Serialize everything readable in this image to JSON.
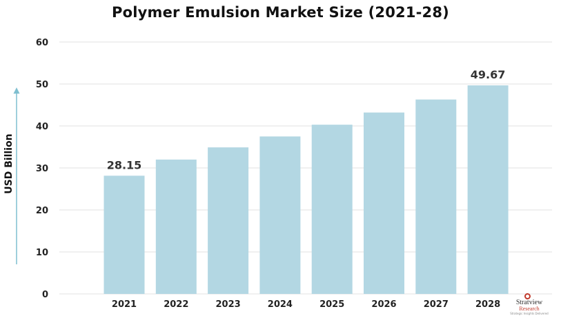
{
  "chart_data": {
    "type": "bar",
    "title": "Polymer Emulsion Market Size (2021-28)",
    "xlabel": "",
    "ylabel": "USD Billion",
    "categories": [
      "2021",
      "2022",
      "2023",
      "2024",
      "2025",
      "2026",
      "2027",
      "2028"
    ],
    "values": [
      28.15,
      32.0,
      34.9,
      37.5,
      40.3,
      43.2,
      46.3,
      49.67
    ],
    "data_labels": [
      {
        "category": "2021",
        "text": "28.15"
      },
      {
        "category": "2028",
        "text": "49.67"
      }
    ],
    "ylim": [
      0,
      60
    ],
    "yticks": [
      "0",
      "10",
      "20",
      "30",
      "40",
      "50",
      "60"
    ],
    "grid": true,
    "bar_color": "#b3d7e3",
    "grid_color": "#e2e2e2",
    "arrow_color": "#7fbfd0"
  },
  "logo": {
    "name": "Stratview",
    "sub": "Research",
    "tagline": "Strategic Insights Delivered"
  }
}
